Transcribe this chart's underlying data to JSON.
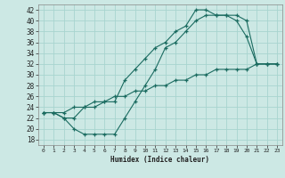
{
  "xlabel": "Humidex (Indice chaleur)",
  "bg_color": "#cce8e4",
  "line_color": "#1a6b60",
  "grid_color": "#a8d4cf",
  "xlim": [
    -0.5,
    23.5
  ],
  "ylim": [
    17,
    43
  ],
  "xticks": [
    0,
    1,
    2,
    3,
    4,
    5,
    6,
    7,
    8,
    9,
    10,
    11,
    12,
    13,
    14,
    15,
    16,
    17,
    18,
    19,
    20,
    21,
    22,
    23
  ],
  "yticks": [
    18,
    20,
    22,
    24,
    26,
    28,
    30,
    32,
    34,
    36,
    38,
    40,
    42
  ],
  "line1_x": [
    0,
    1,
    2,
    3,
    4,
    5,
    6,
    7,
    8,
    9,
    10,
    11,
    12,
    13,
    14,
    15,
    16,
    17,
    18,
    19,
    20,
    21,
    22,
    23
  ],
  "line1_y": [
    23,
    23,
    22,
    20,
    19,
    19,
    19,
    19,
    22,
    25,
    28,
    31,
    35,
    36,
    38,
    40,
    41,
    41,
    41,
    40,
    37,
    32,
    32,
    32
  ],
  "line2_x": [
    0,
    1,
    2,
    3,
    4,
    5,
    6,
    7,
    8,
    9,
    10,
    11,
    12,
    13,
    14,
    15,
    16,
    17,
    18,
    19,
    20,
    21,
    22,
    23
  ],
  "line2_y": [
    23,
    23,
    22,
    22,
    24,
    24,
    25,
    25,
    29,
    31,
    33,
    35,
    36,
    38,
    39,
    42,
    42,
    41,
    41,
    41,
    40,
    32,
    32,
    32
  ],
  "line3_x": [
    0,
    1,
    2,
    3,
    4,
    5,
    6,
    7,
    8,
    9,
    10,
    11,
    12,
    13,
    14,
    15,
    16,
    17,
    18,
    19,
    20,
    21,
    22,
    23
  ],
  "line3_y": [
    23,
    23,
    23,
    24,
    24,
    25,
    25,
    26,
    26,
    27,
    27,
    28,
    28,
    29,
    29,
    30,
    30,
    31,
    31,
    31,
    31,
    32,
    32,
    32
  ]
}
